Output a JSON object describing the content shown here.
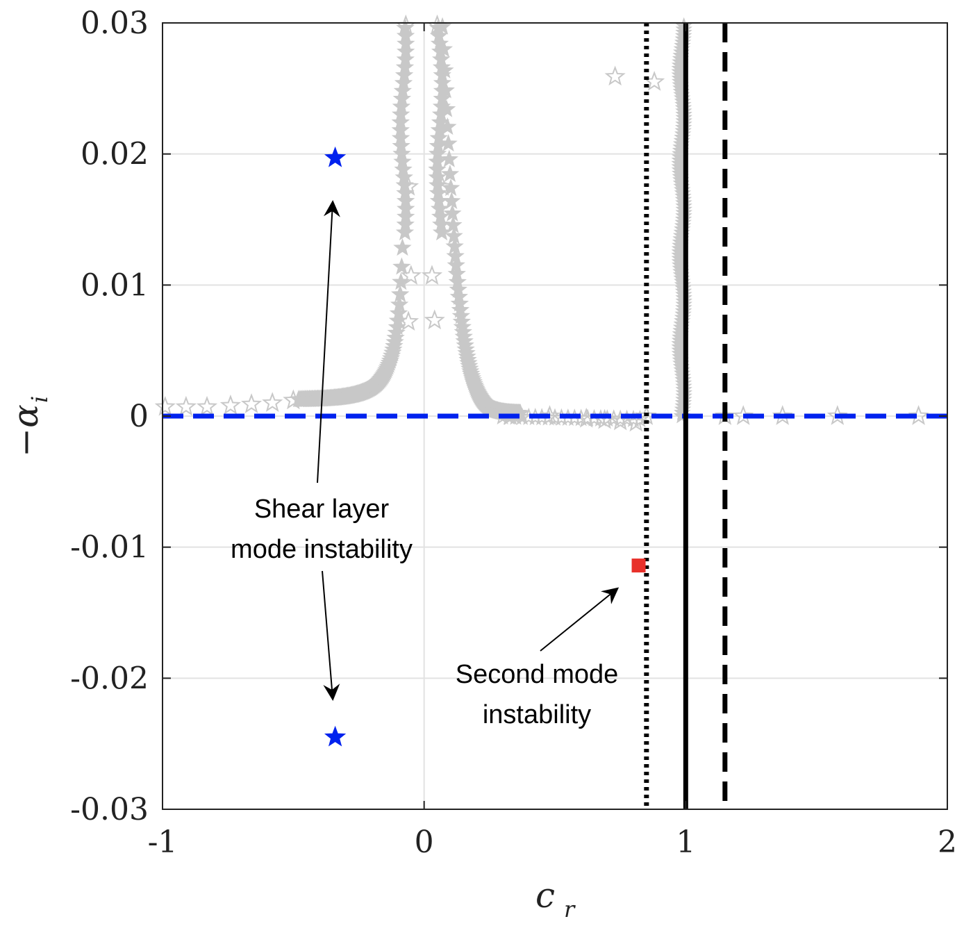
{
  "chart_data": {
    "type": "scatter",
    "xlabel": "c",
    "xlabel_sub": "r",
    "ylabel": "−α",
    "ylabel_sub": "i",
    "xlim": [
      -1,
      2
    ],
    "ylim": [
      -0.03,
      0.03
    ],
    "xticks": [
      -1,
      0,
      1,
      2
    ],
    "xtick_labels": [
      "-1",
      "0",
      "1",
      "2"
    ],
    "yticks": [
      -0.03,
      -0.02,
      -0.01,
      0,
      0.01,
      0.02,
      0.03
    ],
    "ytick_labels": [
      "-0.03",
      "-0.02",
      "-0.01",
      "0",
      "0.01",
      "0.02",
      "0.03"
    ],
    "grid": true,
    "colors": {
      "spectrum": "#c8c8c8",
      "shear_mode": "#0022ee",
      "second_mode": "#e8302a",
      "reference_zero": "#0022ee",
      "vertical_lines": "#000000"
    },
    "reference_lines": [
      {
        "orientation": "horizontal",
        "value": 0,
        "style": "dashed",
        "color": "#0022ee"
      },
      {
        "orientation": "vertical",
        "value": 0.85,
        "style": "dotted",
        "color": "#000000"
      },
      {
        "orientation": "vertical",
        "value": 1.0,
        "style": "solid",
        "color": "#000000",
        "range": [
          -0.03,
          0.03
        ]
      },
      {
        "orientation": "vertical",
        "value": 1.15,
        "style": "dashed",
        "color": "#000000"
      }
    ],
    "highlighted_points": [
      {
        "group": "shear_mode",
        "x": -0.34,
        "y": 0.0197,
        "marker": "filled-star",
        "color": "#0022ee"
      },
      {
        "group": "shear_mode",
        "x": -0.34,
        "y": -0.0245,
        "marker": "filled-star",
        "color": "#0022ee"
      },
      {
        "group": "second_mode",
        "x": 0.82,
        "y": -0.0114,
        "marker": "filled-square",
        "color": "#e8302a"
      }
    ],
    "scattered_spectrum_points": [
      [
        -0.99,
        0.0007
      ],
      [
        -0.91,
        0.0007
      ],
      [
        -0.83,
        0.0007
      ],
      [
        -0.74,
        0.0008
      ],
      [
        -0.66,
        0.0009
      ],
      [
        -0.58,
        0.001
      ],
      [
        -0.5,
        0.0012
      ],
      [
        -0.07,
        0.0298
      ],
      [
        0.05,
        0.0298
      ],
      [
        0.33,
        0.0
      ],
      [
        0.48,
        0.0
      ],
      [
        0.62,
        -0.0002
      ],
      [
        0.69,
        -0.0003
      ],
      [
        0.73,
        0.0259
      ],
      [
        0.75,
        -0.0004
      ],
      [
        0.81,
        -0.0005
      ],
      [
        0.88,
        0.0255
      ],
      [
        0.85,
        0.0
      ],
      [
        1.15,
        0.0
      ],
      [
        1.22,
        0.0
      ],
      [
        1.37,
        0.0
      ],
      [
        1.58,
        0.0
      ],
      [
        1.89,
        0.0
      ],
      [
        -0.06,
        0.0072
      ],
      [
        0.04,
        0.0073
      ],
      [
        -0.05,
        0.0107
      ],
      [
        0.03,
        0.0107
      ],
      [
        -0.06,
        0.0175
      ],
      [
        0.07,
        0.0175
      ]
    ],
    "annotations": [
      {
        "text_lines": [
          "Shear layer",
          "mode instability"
        ],
        "x": -0.39,
        "y": -0.0103,
        "arrows_to": [
          [
            -0.34,
            0.0175
          ],
          [
            -0.34,
            -0.0228
          ]
        ]
      },
      {
        "text_lines": [
          "Second mode",
          "instability"
        ],
        "x": 0.43,
        "y": -0.0216,
        "arrows_to": [
          [
            0.79,
            -0.0127
          ]
        ]
      }
    ]
  },
  "annotation_text": {
    "shear_line1": "Shear layer",
    "shear_line2": "mode instability",
    "second_line1": "Second mode",
    "second_line2": "instability"
  }
}
